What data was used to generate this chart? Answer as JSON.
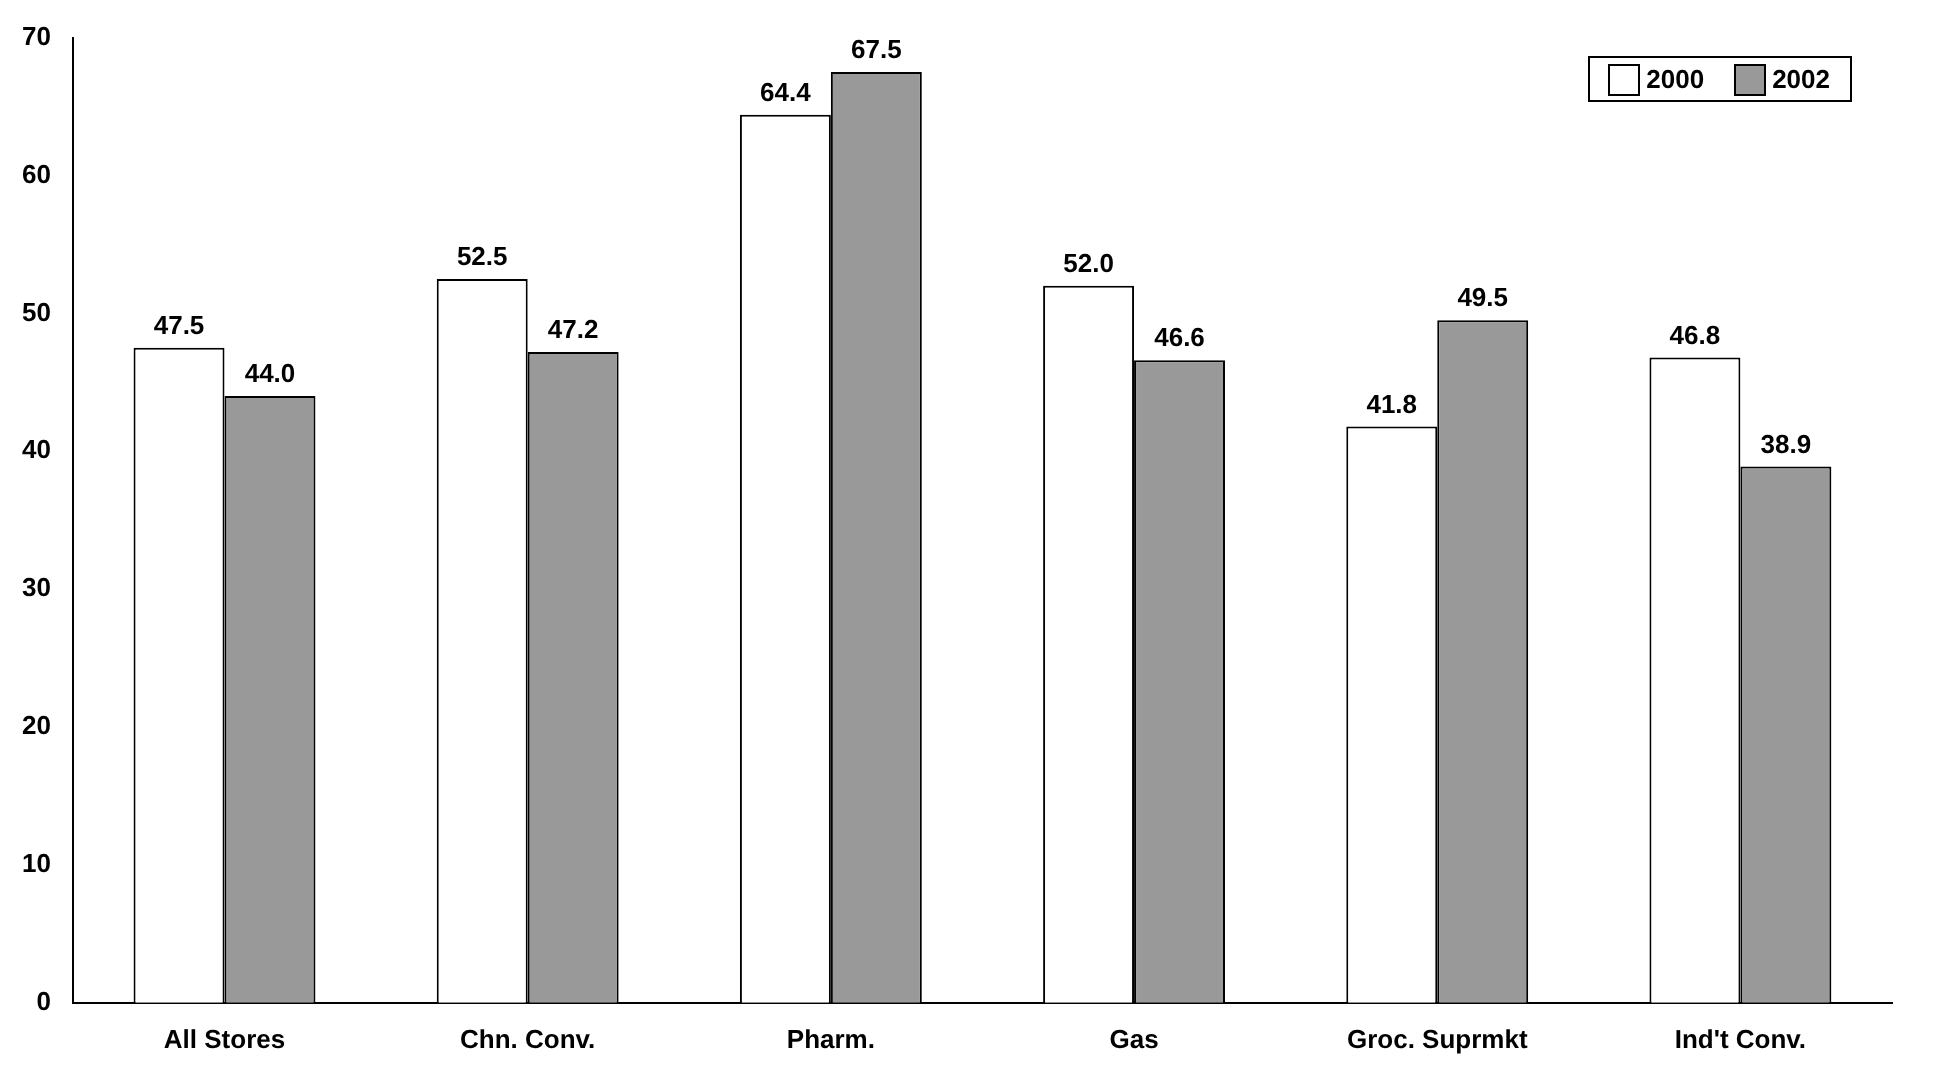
{
  "chart_data": {
    "type": "bar",
    "categories": [
      "All Stores",
      "Chn. Conv.",
      "Pharm.",
      "Gas",
      "Groc. Suprmkt",
      "Ind't Conv."
    ],
    "series": [
      {
        "name": "2000",
        "color": "#ffffff",
        "values": [
          47.5,
          52.5,
          64.4,
          52.0,
          41.8,
          46.8
        ],
        "value_labels": [
          "47.5",
          "52.5",
          "64.4",
          "52.0",
          "41.8",
          "46.8"
        ]
      },
      {
        "name": "2002",
        "color": "#999999",
        "values": [
          44.0,
          47.2,
          67.5,
          46.6,
          49.5,
          38.9
        ],
        "value_labels": [
          "44.0",
          "47.2",
          "67.5",
          "46.6",
          "49.5",
          "38.9"
        ]
      }
    ],
    "ylim": [
      0,
      70
    ],
    "yticks": [
      0,
      10,
      20,
      30,
      40,
      50,
      60,
      70
    ],
    "grid": false,
    "legend": "top right"
  }
}
